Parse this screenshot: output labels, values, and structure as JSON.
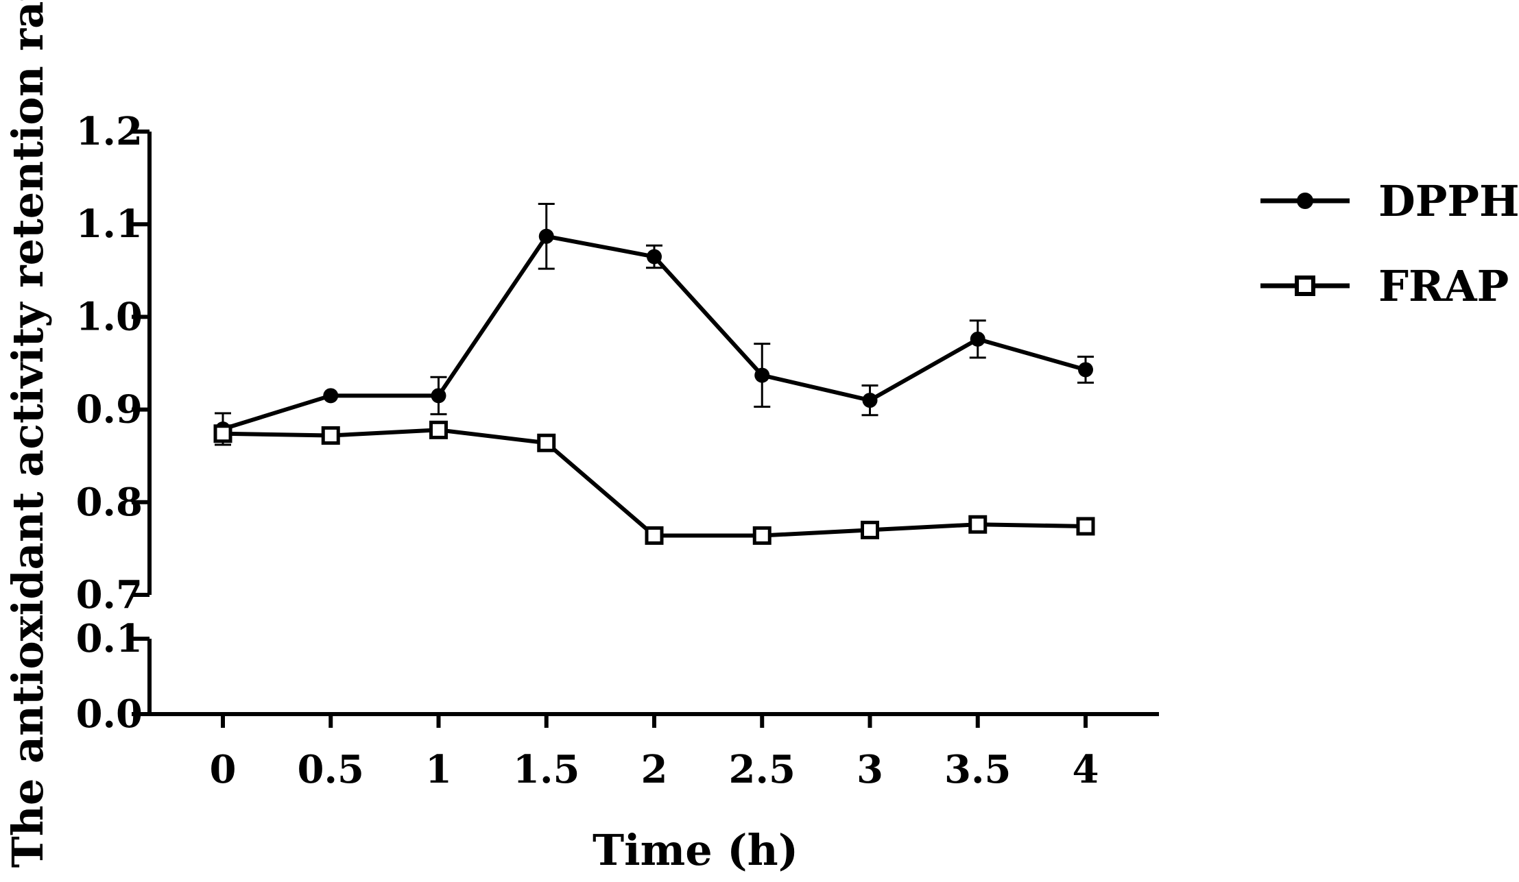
{
  "chart_data": {
    "type": "line",
    "title": "",
    "xlabel": "Time (h)",
    "ylabel": "The antioxidant activity retention rate",
    "x": [
      0,
      0.5,
      1,
      1.5,
      2,
      2.5,
      3,
      3.5,
      4
    ],
    "x_tick_labels": [
      "0",
      "0.5",
      "1",
      "1.5",
      "2",
      "2.5",
      "3",
      "3.5",
      "4"
    ],
    "y_axis_broken": true,
    "y_lower_segment": {
      "range": [
        0.0,
        0.1
      ],
      "ticks": [
        0.0,
        0.1
      ],
      "tick_labels": [
        "0.0",
        "0.1"
      ]
    },
    "y_upper_segment": {
      "range": [
        0.7,
        1.2
      ],
      "ticks": [
        0.7,
        0.8,
        0.9,
        1.0,
        1.1,
        1.2
      ],
      "tick_labels": [
        "0.7",
        "0.8",
        "0.9",
        "1.0",
        "1.1",
        "1.2"
      ]
    },
    "legend_position": "right",
    "series": [
      {
        "name": "DPPH",
        "marker": "filled-circle",
        "values": [
          0.879,
          0.915,
          0.915,
          1.087,
          1.065,
          0.937,
          0.91,
          0.976,
          0.943
        ],
        "errors": [
          0.017,
          0.003,
          0.02,
          0.035,
          0.012,
          0.034,
          0.016,
          0.02,
          0.014
        ]
      },
      {
        "name": "FRAP",
        "marker": "open-square",
        "values": [
          0.874,
          0.872,
          0.878,
          0.864,
          0.764,
          0.764,
          0.77,
          0.776,
          0.774
        ],
        "errors": [
          0.004,
          0.003,
          0.004,
          0.003,
          0.003,
          0.003,
          0.003,
          0.003,
          0.003
        ]
      }
    ]
  }
}
